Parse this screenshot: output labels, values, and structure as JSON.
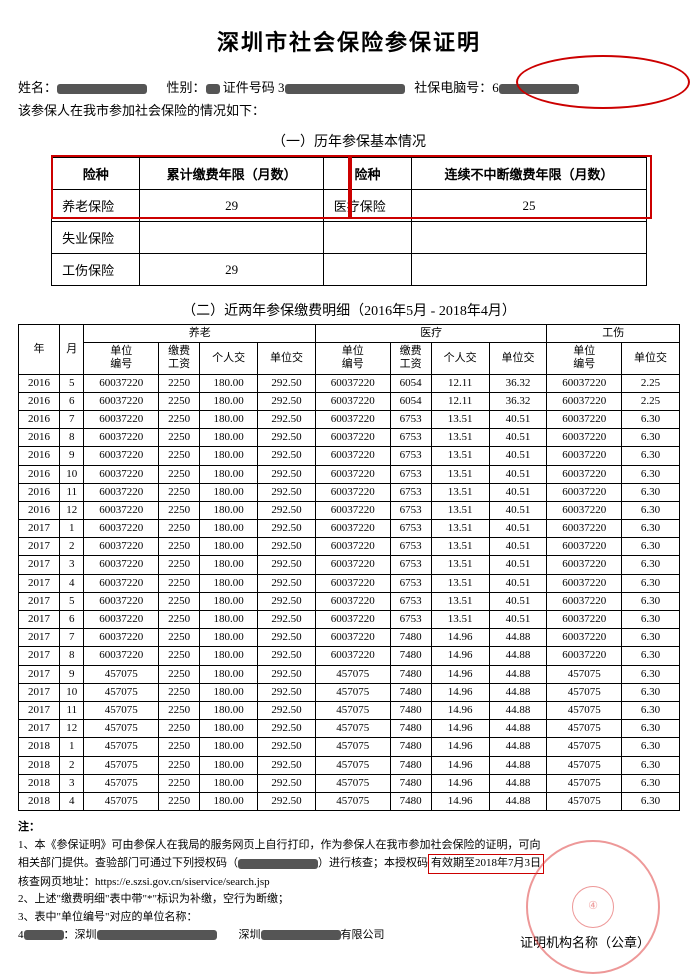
{
  "title": "深圳市社会保险参保证明",
  "info": {
    "name_label": "姓名：",
    "sex_label": "性别：",
    "id_label": " 证件号码 3",
    "computer_label": "社保电脑号：6",
    "line2": "该参保人在我市参加社会保险的情况如下："
  },
  "section1": {
    "title": "（一）历年参保基本情况",
    "h1": "险种",
    "h2": "累计缴费年限（月数）",
    "h3": "险种",
    "h4": "连续不中断缴费年限（月数）",
    "rows": [
      {
        "a": "养老保险",
        "b": "29",
        "c": "医疗保险",
        "d": "25"
      },
      {
        "a": "失业保险",
        "b": "",
        "c": "",
        "d": ""
      },
      {
        "a": "工伤保险",
        "b": "29",
        "c": "",
        "d": ""
      }
    ]
  },
  "section2": {
    "title": "（二）近两年参保缴费明细（2016年5月 - 2018年4月）",
    "head_top": [
      "年",
      "月",
      "养老",
      "医疗",
      "工伤"
    ],
    "head_sub": [
      "单位编号",
      "缴费工资",
      "个人交",
      "单位交",
      "单位编号",
      "缴费工资",
      "个人交",
      "单位交",
      "单位编号",
      "单位交"
    ],
    "rows": [
      [
        "2016",
        "5",
        "60037220",
        "2250",
        "180.00",
        "292.50",
        "60037220",
        "6054",
        "12.11",
        "36.32",
        "60037220",
        "2.25"
      ],
      [
        "2016",
        "6",
        "60037220",
        "2250",
        "180.00",
        "292.50",
        "60037220",
        "6054",
        "12.11",
        "36.32",
        "60037220",
        "2.25"
      ],
      [
        "2016",
        "7",
        "60037220",
        "2250",
        "180.00",
        "292.50",
        "60037220",
        "6753",
        "13.51",
        "40.51",
        "60037220",
        "6.30"
      ],
      [
        "2016",
        "8",
        "60037220",
        "2250",
        "180.00",
        "292.50",
        "60037220",
        "6753",
        "13.51",
        "40.51",
        "60037220",
        "6.30"
      ],
      [
        "2016",
        "9",
        "60037220",
        "2250",
        "180.00",
        "292.50",
        "60037220",
        "6753",
        "13.51",
        "40.51",
        "60037220",
        "6.30"
      ],
      [
        "2016",
        "10",
        "60037220",
        "2250",
        "180.00",
        "292.50",
        "60037220",
        "6753",
        "13.51",
        "40.51",
        "60037220",
        "6.30"
      ],
      [
        "2016",
        "11",
        "60037220",
        "2250",
        "180.00",
        "292.50",
        "60037220",
        "6753",
        "13.51",
        "40.51",
        "60037220",
        "6.30"
      ],
      [
        "2016",
        "12",
        "60037220",
        "2250",
        "180.00",
        "292.50",
        "60037220",
        "6753",
        "13.51",
        "40.51",
        "60037220",
        "6.30"
      ],
      [
        "2017",
        "1",
        "60037220",
        "2250",
        "180.00",
        "292.50",
        "60037220",
        "6753",
        "13.51",
        "40.51",
        "60037220",
        "6.30"
      ],
      [
        "2017",
        "2",
        "60037220",
        "2250",
        "180.00",
        "292.50",
        "60037220",
        "6753",
        "13.51",
        "40.51",
        "60037220",
        "6.30"
      ],
      [
        "2017",
        "3",
        "60037220",
        "2250",
        "180.00",
        "292.50",
        "60037220",
        "6753",
        "13.51",
        "40.51",
        "60037220",
        "6.30"
      ],
      [
        "2017",
        "4",
        "60037220",
        "2250",
        "180.00",
        "292.50",
        "60037220",
        "6753",
        "13.51",
        "40.51",
        "60037220",
        "6.30"
      ],
      [
        "2017",
        "5",
        "60037220",
        "2250",
        "180.00",
        "292.50",
        "60037220",
        "6753",
        "13.51",
        "40.51",
        "60037220",
        "6.30"
      ],
      [
        "2017",
        "6",
        "60037220",
        "2250",
        "180.00",
        "292.50",
        "60037220",
        "6753",
        "13.51",
        "40.51",
        "60037220",
        "6.30"
      ],
      [
        "2017",
        "7",
        "60037220",
        "2250",
        "180.00",
        "292.50",
        "60037220",
        "7480",
        "14.96",
        "44.88",
        "60037220",
        "6.30"
      ],
      [
        "2017",
        "8",
        "60037220",
        "2250",
        "180.00",
        "292.50",
        "60037220",
        "7480",
        "14.96",
        "44.88",
        "60037220",
        "6.30"
      ],
      [
        "2017",
        "9",
        "457075",
        "2250",
        "180.00",
        "292.50",
        "457075",
        "7480",
        "14.96",
        "44.88",
        "457075",
        "6.30"
      ],
      [
        "2017",
        "10",
        "457075",
        "2250",
        "180.00",
        "292.50",
        "457075",
        "7480",
        "14.96",
        "44.88",
        "457075",
        "6.30"
      ],
      [
        "2017",
        "11",
        "457075",
        "2250",
        "180.00",
        "292.50",
        "457075",
        "7480",
        "14.96",
        "44.88",
        "457075",
        "6.30"
      ],
      [
        "2017",
        "12",
        "457075",
        "2250",
        "180.00",
        "292.50",
        "457075",
        "7480",
        "14.96",
        "44.88",
        "457075",
        "6.30"
      ],
      [
        "2018",
        "1",
        "457075",
        "2250",
        "180.00",
        "292.50",
        "457075",
        "7480",
        "14.96",
        "44.88",
        "457075",
        "6.30"
      ],
      [
        "2018",
        "2",
        "457075",
        "2250",
        "180.00",
        "292.50",
        "457075",
        "7480",
        "14.96",
        "44.88",
        "457075",
        "6.30"
      ],
      [
        "2018",
        "3",
        "457075",
        "2250",
        "180.00",
        "292.50",
        "457075",
        "7480",
        "14.96",
        "44.88",
        "457075",
        "6.30"
      ],
      [
        "2018",
        "4",
        "457075",
        "2250",
        "180.00",
        "292.50",
        "457075",
        "7480",
        "14.96",
        "44.88",
        "457075",
        "6.30"
      ]
    ]
  },
  "notes": {
    "hd": "注：",
    "l1a": "1、本《参保证明》可由参保人在我局的服务网页上自行打印，作为参保人在我市参加社会保险的证明，可向",
    "l1b": "相关部门提供。查验部门可通过下列授权码（",
    "l1c": "）进行核查；本授权码",
    "l1d": "有效期至2018年7月3日",
    "l1e": "核查网页地址：https://e.szsi.gov.cn/siservice/search.jsp",
    "l2": "2、上述\"缴费明细\"表中带\"*\"标识为补缴，空行为断缴；",
    "l3": "3、表中\"单位编号\"对应的单位名称：",
    "l4a": "4",
    "l4b": "：深圳",
    "l4c": "深圳",
    "l4d": "有限公司",
    "seal_label": "证明机构名称（公章）"
  },
  "style": {
    "anno_color": "#c00",
    "redact_color": "#555"
  }
}
